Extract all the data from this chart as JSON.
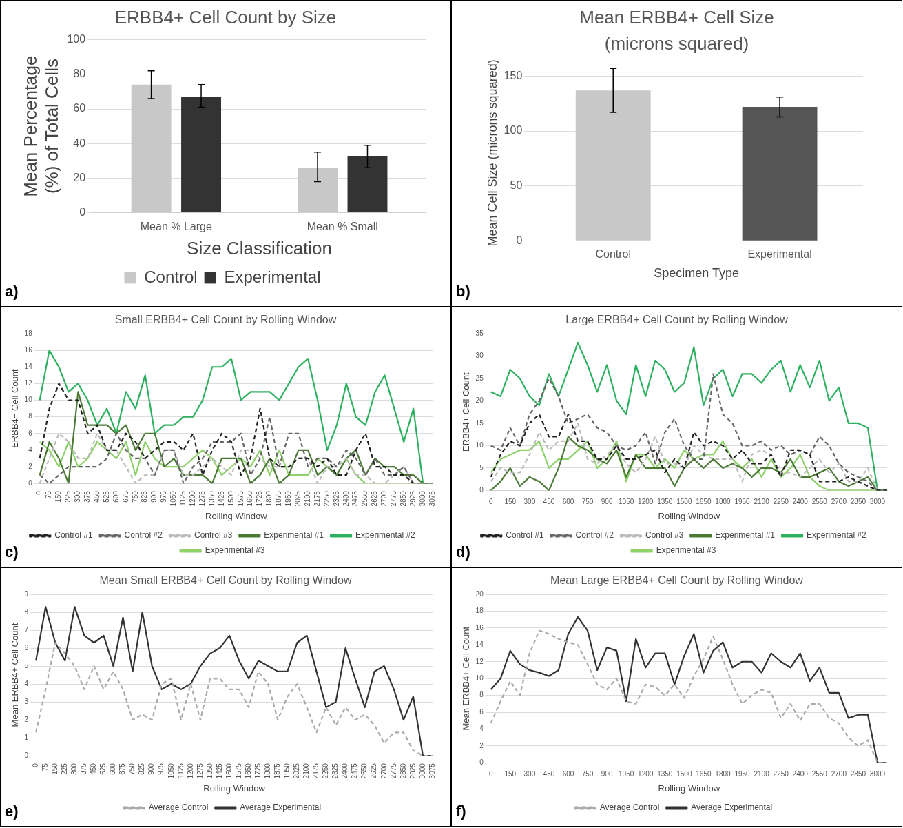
{
  "chart_data": [
    {
      "type": "bar",
      "title": "ERBB4+ Cell Count by Size",
      "xlabel": "Size Classification",
      "ylabel": "Mean Percentage (%) of Total Cells",
      "categories": [
        "Mean % Large",
        "Mean % Small"
      ],
      "ylim": [
        0,
        100
      ],
      "yticks": [
        0,
        20,
        40,
        60,
        80,
        100
      ],
      "grid": "y",
      "legend": "bottom",
      "annotations": [
        "a)"
      ],
      "series": [
        {
          "name": "Control",
          "color": "#c8c8c8",
          "values": [
            74,
            26
          ],
          "errors": [
            [
              66,
              82
            ],
            [
              18,
              35
            ]
          ]
        },
        {
          "name": "Experimental",
          "color": "#333333",
          "values": [
            67,
            32.5
          ],
          "errors": [
            [
              61,
              74
            ],
            [
              26,
              39
            ]
          ]
        }
      ]
    },
    {
      "type": "bar",
      "title": "Mean ERBB4+ Cell Size (microns squared)",
      "xlabel": "Specimen Type",
      "ylabel": "Mean Cell Size (microns squared)",
      "categories": [
        "Control",
        "Experimental"
      ],
      "ylim": [
        0,
        160
      ],
      "yticks": [
        0,
        50,
        100,
        150
      ],
      "grid": "y",
      "annotations": [
        "b)"
      ],
      "series": [
        {
          "colors": [
            "#c8c8c8",
            "#555555"
          ],
          "values": [
            137,
            122
          ],
          "errors": [
            [
              117,
              157
            ],
            [
              113,
              131
            ]
          ]
        }
      ]
    },
    {
      "type": "line",
      "title": "Small ERBB4+ Cell Count by Rolling Window",
      "xlabel": "Rolling Window",
      "ylabel": "ERBB4+ Cell Count",
      "ylim": [
        0,
        18
      ],
      "yticks": [
        0,
        2,
        4,
        6,
        8,
        10,
        12,
        14,
        16,
        18
      ],
      "grid": "y",
      "legend": "bottom",
      "marker": "none",
      "annotations": [
        "c)"
      ],
      "categories": [
        "0",
        "75",
        "150",
        "225",
        "300",
        "375",
        "450",
        "525",
        "600",
        "675",
        "750",
        "825",
        "900",
        "975",
        "1050",
        "1125",
        "1200",
        "1275",
        "1350",
        "1425",
        "1500",
        "1575",
        "1650",
        "1725",
        "1800",
        "1875",
        "1950",
        "2025",
        "2100",
        "2175",
        "2250",
        "2325",
        "2400",
        "2475",
        "2550",
        "2625",
        "2700",
        "2775",
        "2850",
        "2925",
        "3000",
        "3075"
      ],
      "series": [
        {
          "name": "Control #1",
          "color": "#222222",
          "line_style": "dashed",
          "values": [
            3,
            9,
            12,
            10,
            10,
            6,
            7,
            4,
            4,
            6,
            5,
            3,
            4,
            5,
            5,
            4,
            6,
            1,
            4,
            6,
            5,
            1,
            3,
            9,
            3,
            2,
            2,
            3,
            3,
            2,
            3,
            1,
            1,
            4,
            6,
            2,
            2,
            1,
            1,
            0,
            0,
            0
          ]
        },
        {
          "name": "Control #2",
          "color": "#666666",
          "line_style": "dashed",
          "values": [
            1,
            0,
            1,
            2,
            2,
            2,
            2,
            3,
            6,
            4,
            3,
            3,
            1,
            4,
            4,
            0,
            2,
            3,
            5,
            5,
            5,
            6,
            1,
            3,
            8,
            2,
            6,
            6,
            2,
            3,
            3,
            2,
            4,
            3,
            1,
            3,
            1,
            1,
            2,
            0,
            0,
            0
          ]
        },
        {
          "name": "Control #3",
          "color": "#bbbbbb",
          "line_style": "dashed",
          "values": [
            0,
            3,
            6,
            5,
            3,
            3,
            6,
            4,
            4,
            2,
            0,
            1,
            1,
            4,
            4,
            1,
            1,
            2,
            3,
            2,
            1,
            4,
            4,
            3,
            2,
            2,
            2,
            3,
            3,
            0,
            2,
            2,
            3,
            1,
            1,
            0,
            0,
            1,
            2,
            0,
            0,
            0
          ]
        },
        {
          "name": "Experimental #1",
          "color": "#4a7a35",
          "line_style": "solid",
          "values": [
            1,
            5,
            3,
            0,
            11,
            7,
            7,
            7,
            6,
            7,
            4,
            6,
            6,
            2,
            3,
            1,
            1,
            1,
            0,
            3,
            3,
            3,
            0,
            1,
            3,
            0,
            1,
            4,
            4,
            1,
            2,
            1,
            3,
            4,
            1,
            3,
            2,
            2,
            1,
            1,
            0,
            0
          ]
        },
        {
          "name": "Experimental #2",
          "color": "#2eb060",
          "line_style": "solid",
          "values": [
            10,
            16,
            14,
            11,
            12,
            10,
            7,
            9,
            6,
            11,
            9,
            13,
            6,
            7,
            7,
            8,
            8,
            10,
            14,
            14,
            15,
            10,
            11,
            11,
            11,
            10,
            12,
            14,
            15,
            10,
            4,
            7,
            12,
            8,
            7,
            11,
            13,
            9,
            5,
            9,
            0,
            0
          ]
        },
        {
          "name": "Experimental #3",
          "color": "#8fd16a",
          "line_style": "solid",
          "values": [
            5,
            4,
            2,
            5,
            2,
            3,
            5,
            4,
            3,
            5,
            1,
            5,
            3,
            2,
            2,
            2,
            3,
            4,
            3,
            1,
            2,
            3,
            2,
            4,
            1,
            4,
            1,
            1,
            1,
            3,
            2,
            1,
            3,
            1,
            0,
            0,
            0,
            0,
            0,
            0,
            0,
            0
          ]
        }
      ]
    },
    {
      "type": "line",
      "title": "Large ERBB4+ Cell Count by Rolling Window",
      "xlabel": "Rolling Window",
      "ylabel": "ERBB4+ Cell Count",
      "ylim": [
        0,
        35
      ],
      "yticks": [
        0,
        5,
        10,
        15,
        20,
        25,
        30,
        35
      ],
      "grid": "y",
      "legend": "bottom",
      "marker": "none",
      "annotations": [
        "d)"
      ],
      "categories": [
        "0",
        null,
        "150",
        null,
        "300",
        null,
        "450",
        null,
        "600",
        null,
        "750",
        null,
        "900",
        null,
        "1050",
        null,
        "1200",
        null,
        "1350",
        null,
        "1500",
        null,
        "1650",
        null,
        "1800",
        null,
        "1950",
        null,
        "2100",
        null,
        "2250",
        null,
        "2400",
        null,
        "2550",
        null,
        "2700",
        null,
        "2850",
        null,
        "3000",
        null
      ],
      "series": [
        {
          "name": "Control #1",
          "color": "#222222",
          "line_style": "dashed",
          "values": [
            3,
            8,
            11,
            10,
            15,
            17,
            12,
            12,
            17,
            11,
            11,
            7,
            7,
            10,
            7,
            7,
            8,
            9,
            4,
            7,
            5,
            13,
            10,
            11,
            10,
            7,
            9,
            6,
            6,
            8,
            3,
            9,
            9,
            8,
            2,
            2,
            2,
            3,
            2,
            1,
            0,
            0
          ]
        },
        {
          "name": "Control #2",
          "color": "#666666",
          "line_style": "dashed",
          "values": [
            10,
            9,
            14,
            10,
            17,
            20,
            25,
            21,
            15,
            16,
            17,
            14,
            13,
            10,
            9,
            10,
            13,
            6,
            13,
            16,
            10,
            7,
            7,
            26,
            17,
            15,
            10,
            10,
            11,
            9,
            10,
            8,
            9,
            8,
            12,
            10,
            6,
            4,
            3,
            2,
            0,
            0
          ]
        },
        {
          "name": "Control #3",
          "color": "#bbbbbb",
          "line_style": "dashed",
          "values": [
            2,
            5,
            4,
            4,
            8,
            13,
            9,
            11,
            11,
            15,
            7,
            6,
            8,
            10,
            6,
            4,
            7,
            12,
            6,
            6,
            5,
            10,
            8,
            7,
            7,
            7,
            2,
            8,
            9,
            8,
            4,
            4,
            3,
            5,
            7,
            4,
            6,
            2,
            2,
            5,
            0,
            0
          ]
        },
        {
          "name": "Experimental #1",
          "color": "#4a7a35",
          "line_style": "solid",
          "values": [
            0,
            2,
            5,
            1,
            3,
            2,
            0,
            5,
            12,
            10,
            9,
            7,
            6,
            9,
            3,
            8,
            5,
            5,
            5,
            1,
            5,
            7,
            5,
            7,
            5,
            6,
            5,
            3,
            5,
            5,
            4,
            7,
            3,
            3,
            4,
            5,
            2,
            1,
            2,
            3,
            0,
            0
          ]
        },
        {
          "name": "Experimental #2",
          "color": "#2eb060",
          "line_style": "solid",
          "values": [
            22,
            21,
            27,
            25,
            21,
            19,
            26,
            21,
            27,
            33,
            28,
            22,
            28,
            20,
            17,
            28,
            21,
            29,
            27,
            22,
            24,
            32,
            19,
            25,
            27,
            21,
            26,
            26,
            24,
            27,
            29,
            22,
            28,
            23,
            29,
            20,
            23,
            15,
            15,
            14,
            0,
            0
          ]
        },
        {
          "name": "Experimental #3",
          "color": "#8fd16a",
          "line_style": "solid",
          "values": [
            4,
            7,
            8,
            9,
            9,
            11,
            5,
            7,
            7,
            9,
            11,
            5,
            7,
            11,
            2,
            8,
            8,
            5,
            7,
            5,
            9,
            7,
            8,
            8,
            11,
            7,
            5,
            7,
            3,
            7,
            3,
            5,
            8,
            3,
            1,
            0,
            0,
            0,
            0,
            0,
            0,
            0
          ]
        }
      ]
    },
    {
      "type": "line",
      "title": "Mean Small ERBB4+ Cell Count by Rolling Window",
      "xlabel": "Rolling Window",
      "ylabel": "Mean ERBB4+ Cell Count",
      "ylim": [
        0,
        9
      ],
      "yticks": [
        0,
        1,
        2,
        3,
        4,
        5,
        6,
        7,
        8,
        9
      ],
      "grid": "y",
      "legend": "bottom",
      "marker": "none",
      "annotations": [
        "e)"
      ],
      "categories": [
        "0",
        "75",
        "150",
        "225",
        "300",
        "375",
        "450",
        "525",
        "600",
        "675",
        "750",
        "825",
        "900",
        "975",
        "1050",
        "1125",
        "1200",
        "1275",
        "1350",
        "1425",
        "1500",
        "1575",
        "1650",
        "1725",
        "1800",
        "1875",
        "1950",
        "2025",
        "2100",
        "2175",
        "2250",
        "2325",
        "2400",
        "2475",
        "2550",
        "2625",
        "2700",
        "2775",
        "2850",
        "2925",
        "3000",
        "3075"
      ],
      "series": [
        {
          "name": "Average Control",
          "color": "#aaaaaa",
          "line_style": "dashed",
          "values": [
            1.3,
            3.7,
            6.3,
            5.7,
            5,
            3.7,
            5,
            3.7,
            4.7,
            3.7,
            2,
            2.3,
            2,
            4,
            4.3,
            2,
            4,
            2,
            4.3,
            4.3,
            3.7,
            3.7,
            2.7,
            4.7,
            4,
            2,
            3.3,
            4,
            2.7,
            1.3,
            2.7,
            1.7,
            2.7,
            2,
            2.3,
            1.7,
            0.7,
            1.3,
            1.3,
            0.3,
            0,
            0
          ]
        },
        {
          "name": "Average Experimental",
          "color": "#333333",
          "line_style": "solid",
          "values": [
            5.3,
            8.3,
            6.3,
            5.3,
            8.3,
            6.7,
            6.3,
            6.7,
            5,
            7.7,
            4.7,
            8,
            5,
            3.7,
            4,
            3.7,
            4,
            5,
            5.7,
            6,
            6.7,
            5.3,
            4.3,
            5.3,
            5,
            4.7,
            4.7,
            6.3,
            6.7,
            4.7,
            2.7,
            3,
            6,
            4.3,
            2.7,
            4.7,
            5,
            3.7,
            2,
            3.3,
            0,
            0
          ]
        }
      ]
    },
    {
      "type": "line",
      "title": "Mean Large ERBB4+ Cell Count by Rolling Window",
      "xlabel": "Rolling Window",
      "ylabel": "Mean ERBB4+ Cell Count",
      "ylim": [
        0,
        20
      ],
      "yticks": [
        0,
        2,
        4,
        6,
        8,
        10,
        12,
        14,
        16,
        18,
        20
      ],
      "grid": "y",
      "legend": "bottom",
      "marker": "none",
      "annotations": [
        "f)"
      ],
      "categories": [
        "0",
        null,
        "150",
        null,
        "300",
        null,
        "450",
        null,
        "600",
        null,
        "750",
        null,
        "900",
        null,
        "1050",
        null,
        "1200",
        null,
        "1350",
        null,
        "1500",
        null,
        "1650",
        null,
        "1800",
        null,
        "1950",
        null,
        "2100",
        null,
        "2250",
        null,
        "2400",
        null,
        "2550",
        null,
        "2700",
        null,
        "2850",
        null,
        "3000",
        null
      ],
      "series": [
        {
          "name": "Average Control",
          "color": "#aaaaaa",
          "line_style": "dashed",
          "values": [
            4.7,
            7.3,
            9.7,
            8,
            13,
            15.7,
            15.3,
            14.7,
            14.3,
            14,
            11.7,
            9.3,
            8.7,
            10,
            7.3,
            7,
            9.3,
            9,
            8,
            9.3,
            7.7,
            10.3,
            12.3,
            15,
            12.3,
            9.3,
            7,
            8,
            8.7,
            8.3,
            5.3,
            7,
            5,
            7,
            7,
            5.3,
            4.7,
            3,
            2,
            2.7,
            0,
            0
          ]
        },
        {
          "name": "Average Experimental",
          "color": "#333333",
          "line_style": "solid",
          "values": [
            8.7,
            10,
            13.3,
            11.7,
            11,
            10.7,
            10.3,
            11,
            15.3,
            17.3,
            15.7,
            11,
            13.7,
            13.3,
            7.3,
            14.7,
            11.3,
            13,
            13,
            9.3,
            12.7,
            15.3,
            10.7,
            13.3,
            14.3,
            11.3,
            12,
            12,
            10.7,
            13,
            12,
            11.3,
            13,
            9.7,
            11.3,
            8.3,
            8.3,
            5.3,
            5.7,
            5.7,
            0,
            0
          ]
        }
      ]
    }
  ]
}
